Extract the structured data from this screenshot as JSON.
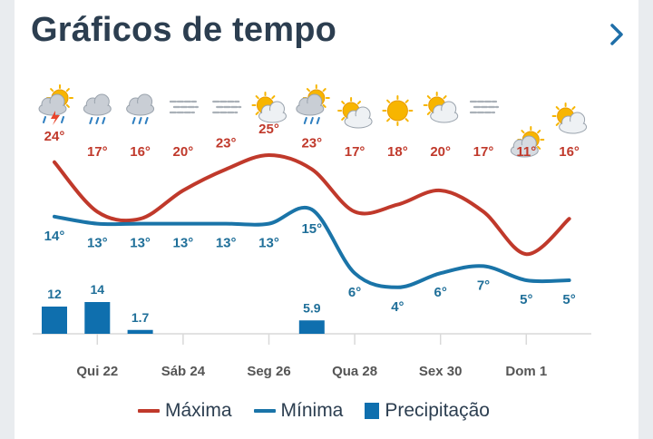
{
  "header": {
    "title": "Gráficos de tempo",
    "next_icon": "chevron-right-icon"
  },
  "colors": {
    "max": "#c0392b",
    "min": "#1a74a8",
    "precip": "#0f6fae"
  },
  "legend": {
    "max": "Máxima",
    "min": "Mínima",
    "precip": "Precipitação"
  },
  "chart_data": {
    "type": "line",
    "x_tick_labels": [
      "Qui 22",
      "Sáb 24",
      "Seg 26",
      "Qua 28",
      "Sex 30",
      "Dom 1"
    ],
    "icons": [
      "thunderstorm-sun-icon",
      "rain-cloud-icon",
      "rain-cloud-icon",
      "fog-icon",
      "fog-icon",
      "partly-cloudy-icon",
      "rain-sun-icon",
      "partly-cloudy-icon",
      "sun-icon",
      "partly-cloudy-icon",
      "fog-icon",
      "cloudy-sun-icon",
      "partly-cloudy-icon"
    ],
    "series": [
      {
        "name": "Máxima",
        "values": [
          24,
          17,
          16,
          20,
          23,
          25,
          23,
          17,
          18,
          20,
          17,
          11,
          16
        ]
      },
      {
        "name": "Mínima",
        "values": [
          14,
          13,
          13,
          13,
          13,
          13,
          15,
          6,
          4,
          6,
          7,
          5,
          5
        ]
      },
      {
        "name": "Precipitação",
        "values": [
          12,
          14,
          1.7,
          0,
          0,
          0,
          5.9,
          0,
          0,
          0,
          0,
          0,
          0
        ]
      }
    ],
    "max_labels": [
      "24°",
      "17°",
      "16°",
      "20°",
      "23°",
      "25°",
      "23°",
      "17°",
      "18°",
      "20°",
      "17°",
      "11°",
      "16°"
    ],
    "min_labels": [
      "14°",
      "13°",
      "13°",
      "13°",
      "13°",
      "13°",
      "15°",
      "6°",
      "4°",
      "6°",
      "7°",
      "5°",
      "5°"
    ],
    "precip_labels": [
      "12",
      "14",
      "1.7",
      "",
      "",
      "",
      "5.9",
      "",
      "",
      "",
      "",
      "",
      ""
    ]
  }
}
